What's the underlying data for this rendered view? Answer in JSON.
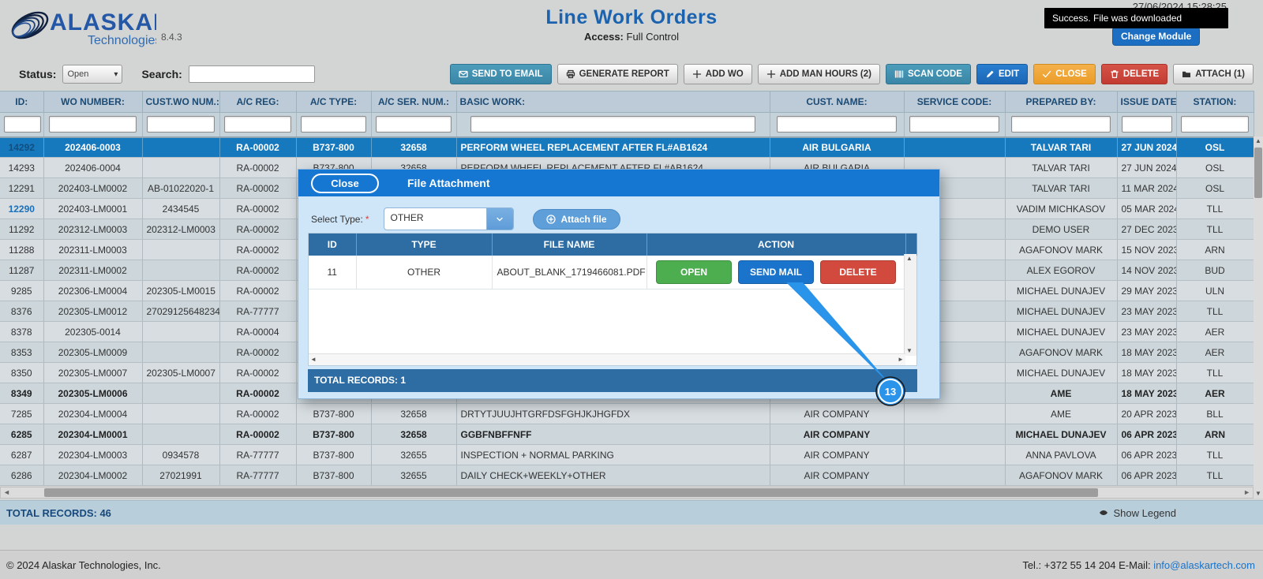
{
  "header": {
    "brand": "ALASKAR",
    "brand_sub": "Technologies",
    "version": "8.4.3",
    "title": "Line Work Orders",
    "access_label": "Access:",
    "access_value": "Full Control",
    "datetime": "27/06/2024 15:28:25",
    "toast": "Success. File was downloaded",
    "change_module": "Change Module"
  },
  "toolbar": {
    "status_label": "Status:",
    "status_value": "Open",
    "search_label": "Search:",
    "search_value": "",
    "buttons": [
      {
        "name": "send-to-email",
        "label": "SEND TO EMAIL",
        "style": "teal",
        "icon": "envelope"
      },
      {
        "name": "generate-report",
        "label": "GENERATE REPORT",
        "style": "default",
        "icon": "printer"
      },
      {
        "name": "add-wo",
        "label": "ADD WO",
        "style": "default",
        "icon": "plus"
      },
      {
        "name": "add-man-hours",
        "label": "ADD MAN HOURS (2)",
        "style": "default",
        "icon": "plus"
      },
      {
        "name": "scan-code",
        "label": "SCAN CODE",
        "style": "teal",
        "icon": "barcode"
      },
      {
        "name": "edit",
        "label": "EDIT",
        "style": "blue",
        "icon": "pencil"
      },
      {
        "name": "close",
        "label": "CLOSE",
        "style": "orange",
        "icon": "check"
      },
      {
        "name": "delete",
        "label": "DELETE",
        "style": "red",
        "icon": "trash"
      },
      {
        "name": "attach",
        "label": "ATTACH (1)",
        "style": "default",
        "icon": "folder"
      }
    ]
  },
  "table": {
    "columns": [
      "ID:",
      "WO NUMBER:",
      "CUST.WO NUM.:",
      "A/C REG:",
      "A/C TYPE:",
      "A/C SER. NUM.:",
      "BASIC WORK:",
      "CUST. NAME:",
      "SERVICE CODE:",
      "PREPARED BY:",
      "ISSUE DATE:",
      "STATION:"
    ],
    "rows": [
      {
        "selected": true,
        "cells": [
          "14292",
          "202406-0003",
          "",
          "RA-00002",
          "B737-800",
          "32658",
          "PERFORM WHEEL REPLACEMENT AFTER FL#AB1624",
          "AIR BULGARIA",
          "",
          "TALVAR TARI",
          "27 JUN 2024",
          "OSL"
        ]
      },
      {
        "cells": [
          "14293",
          "202406-0004",
          "",
          "RA-00002",
          "B737-800",
          "32658",
          "PERFORM WHEEL REPLACEMENT AFTER FL#AB1624",
          "AIR BULGARIA",
          "",
          "TALVAR TARI",
          "27 JUN 2024",
          "OSL"
        ]
      },
      {
        "cells": [
          "12291",
          "202403-LM0002",
          "AB-01022020-1",
          "RA-00002",
          "",
          "",
          "",
          "",
          "",
          "TALVAR TARI",
          "11 MAR 2024",
          "OSL"
        ]
      },
      {
        "id_link": true,
        "cells": [
          "12290",
          "202403-LM0001",
          "2434545",
          "RA-00002",
          "",
          "",
          "",
          "",
          "",
          "VADIM MICHKASOV",
          "05 MAR 2024",
          "TLL"
        ]
      },
      {
        "cells": [
          "11292",
          "202312-LM0003",
          "202312-LM0003",
          "RA-00002",
          "",
          "",
          "",
          "",
          "",
          "DEMO USER",
          "27 DEC 2023",
          "TLL"
        ]
      },
      {
        "cells": [
          "11288",
          "202311-LM0003",
          "",
          "RA-00002",
          "",
          "",
          "",
          "",
          "",
          "AGAFONOV MARK",
          "15 NOV 2023",
          "ARN"
        ]
      },
      {
        "cells": [
          "11287",
          "202311-LM0002",
          "",
          "RA-00002",
          "",
          "",
          "",
          "",
          "",
          "ALEX EGOROV",
          "14 NOV 2023",
          "BUD"
        ]
      },
      {
        "cells": [
          "9285",
          "202306-LM0004",
          "202305-LM0015",
          "RA-00002",
          "",
          "",
          "",
          "",
          "",
          "MICHAEL DUNAJEV",
          "29 MAY 2023",
          "ULN"
        ]
      },
      {
        "cells": [
          "8376",
          "202305-LM0012",
          "27029125648234",
          "RA-77777",
          "",
          "",
          "",
          "",
          "",
          "MICHAEL DUNAJEV",
          "23 MAY 2023",
          "TLL"
        ]
      },
      {
        "cells": [
          "8378",
          "202305-0014",
          "",
          "RA-00004",
          "",
          "",
          "",
          "",
          "",
          "MICHAEL DUNAJEV",
          "23 MAY 2023",
          "AER"
        ]
      },
      {
        "cells": [
          "8353",
          "202305-LM0009",
          "",
          "RA-00002",
          "",
          "",
          "",
          "",
          "",
          "AGAFONOV MARK",
          "18 MAY 2023",
          "AER"
        ]
      },
      {
        "cells": [
          "8350",
          "202305-LM0007",
          "202305-LM0007",
          "RA-00002",
          "",
          "",
          "",
          "",
          "",
          "MICHAEL DUNAJEV",
          "18 MAY 2023",
          "TLL"
        ]
      },
      {
        "bold": true,
        "cells": [
          "8349",
          "202305-LM0006",
          "",
          "RA-00002",
          "",
          "",
          "",
          "",
          "",
          "AME",
          "18 MAY 2023",
          "AER"
        ]
      },
      {
        "cells": [
          "7285",
          "202304-LM0004",
          "",
          "RA-00002",
          "B737-800",
          "32658",
          "DRTYTJUUJHTGRFDSFGHJKJHGFDX",
          "AIR COMPANY",
          "",
          "AME",
          "20 APR 2023",
          "BLL"
        ]
      },
      {
        "bold": true,
        "cells": [
          "6285",
          "202304-LM0001",
          "",
          "RA-00002",
          "B737-800",
          "32658",
          "GGBFNBFFNFF",
          "AIR COMPANY",
          "",
          "MICHAEL DUNAJEV",
          "06 APR 2023",
          "ARN"
        ]
      },
      {
        "cells": [
          "6287",
          "202304-LM0003",
          "0934578",
          "RA-77777",
          "B737-800",
          "32655",
          "INSPECTION + NORMAL PARKING",
          "AIR COMPANY",
          "",
          "ANNA PAVLOVA",
          "06 APR 2023",
          "TLL"
        ]
      },
      {
        "cells": [
          "6286",
          "202304-LM0002",
          "27021991",
          "RA-77777",
          "B737-800",
          "32655",
          "DAILY CHECK+WEEKLY+OTHER",
          "AIR COMPANY",
          "",
          "AGAFONOV MARK",
          "06 APR 2023",
          "TLL"
        ]
      }
    ]
  },
  "modal": {
    "close_label": "Close",
    "title": "File Attachment",
    "select_type_label": "Select Type:",
    "required_mark": "*",
    "select_value": "OTHER",
    "attach_file_label": "Attach file",
    "columns": [
      "ID",
      "TYPE",
      "FILE NAME",
      "ACTION"
    ],
    "row": {
      "id": "11",
      "type": "OTHER",
      "file": "ABOUT_BLANK_1719466081.PDF"
    },
    "actions": [
      {
        "name": "open",
        "label": "OPEN",
        "style": "green"
      },
      {
        "name": "send-mail",
        "label": "SEND MAIL",
        "style": "blue"
      },
      {
        "name": "delete",
        "label": "DELETE",
        "style": "red"
      }
    ],
    "total": "TOTAL RECORDS: 1"
  },
  "callout": {
    "number": "13"
  },
  "totals": {
    "main": "TOTAL RECORDS: 46",
    "show_legend": "Show Legend"
  },
  "page_footer": {
    "copyright": "© 2024 Alaskar Technologies, Inc.",
    "contact_label": "Tel.: +372 55 14 204 E-Mail: ",
    "email": "info@alaskartech.com"
  },
  "colors": {
    "accent_blue": "#1b6ec2",
    "selected_row": "#1779bd",
    "modal_header": "#1677d2",
    "modal_table_header": "#2d6da3",
    "button_teal": "#3a86a6",
    "button_orange": "#eb9c28",
    "button_red": "#c23c32",
    "action_green": "#4cae4f",
    "toast_bg": "#000000"
  }
}
